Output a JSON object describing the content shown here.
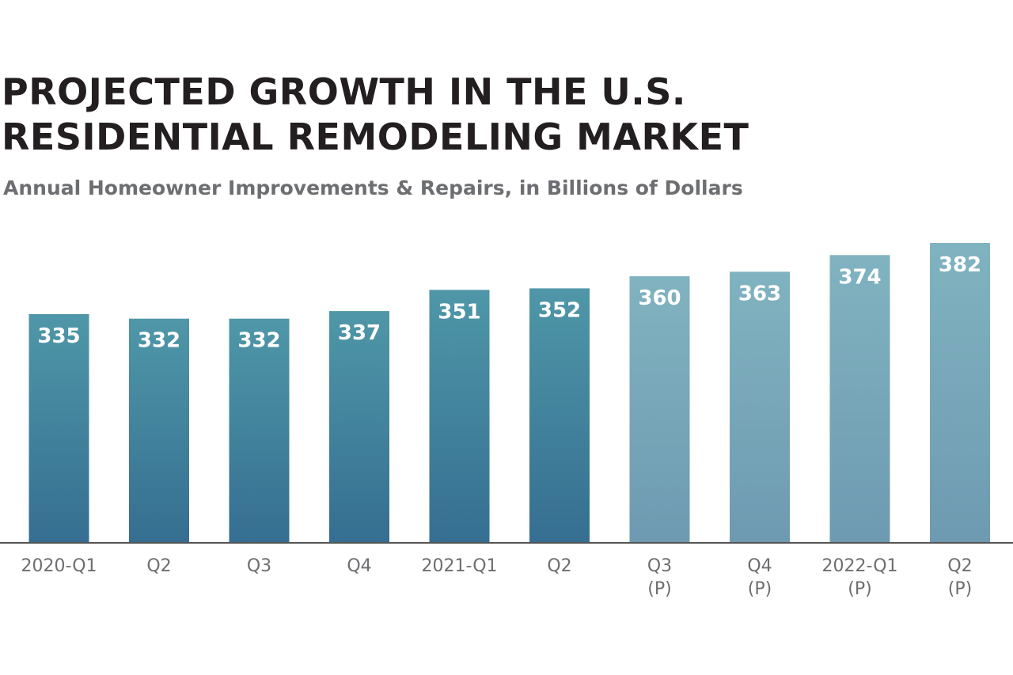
{
  "chart_data": {
    "type": "bar",
    "title": [
      "PROJECTED GROWTH IN THE U.S.",
      "RESIDENTIAL REMODELING MARKET"
    ],
    "subtitle": "Annual Homeowner Improvements & Repairs, in Billions of Dollars",
    "xlabel": "",
    "ylabel": "",
    "categories": [
      [
        "2020-Q1"
      ],
      [
        "Q2"
      ],
      [
        "Q3"
      ],
      [
        "Q4"
      ],
      [
        "2021-Q1"
      ],
      [
        "Q2"
      ],
      [
        "Q3",
        "(P)"
      ],
      [
        "Q4",
        "(P)"
      ],
      [
        "2022-Q1",
        "(P)"
      ],
      [
        "Q2",
        "(P)"
      ]
    ],
    "values": [
      335,
      332,
      332,
      337,
      351,
      352,
      360,
      363,
      374,
      382
    ],
    "projected": [
      false,
      false,
      false,
      false,
      false,
      false,
      true,
      true,
      true,
      true
    ],
    "ylim": [
      184,
      382
    ],
    "grid": false,
    "colors": {
      "actual_top": "#4f97a8",
      "actual_bottom": "#356e91",
      "projected_top": "#80b3c0",
      "projected_bottom": "#6e9ab1",
      "baseline": "#555555"
    }
  }
}
